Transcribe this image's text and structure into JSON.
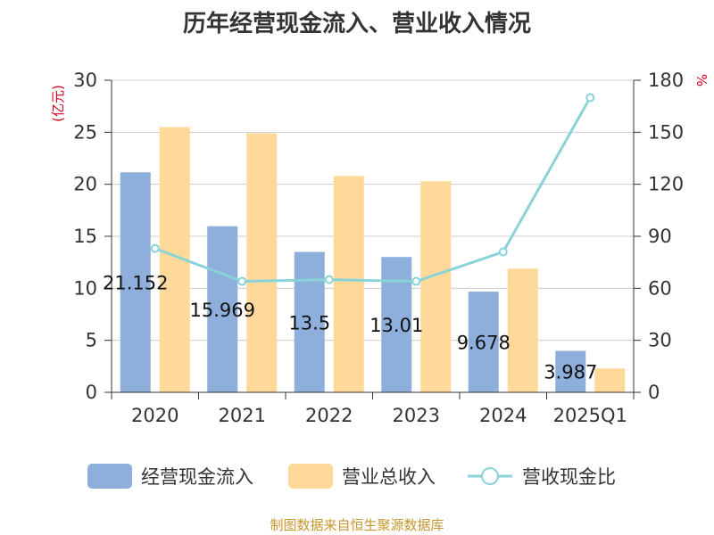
{
  "chart_data": {
    "type": "bar",
    "title": "历年经营现金流入、营业收入情况",
    "categories": [
      "2020",
      "2021",
      "2022",
      "2023",
      "2024",
      "2025Q1"
    ],
    "y_left": {
      "unit": "(亿元)",
      "ylim": [
        0,
        30
      ],
      "ticks": [
        "0",
        "5",
        "10",
        "15",
        "20",
        "25",
        "30"
      ]
    },
    "y_right": {
      "unit": "%",
      "ylim": [
        0,
        180
      ],
      "ticks": [
        "0",
        "30",
        "60",
        "90",
        "120",
        "150",
        "180"
      ]
    },
    "series": [
      {
        "name": "经营现金流入",
        "kind": "bar",
        "axis": "left",
        "color": "#8eaedb",
        "values": [
          21.15,
          15.97,
          13.5,
          13.01,
          9.678,
          3.987
        ],
        "labels": [
          "21.152",
          "15.969",
          "13.5",
          "13.01",
          "9.678",
          "3.987"
        ]
      },
      {
        "name": "营业总收入",
        "kind": "bar",
        "axis": "left",
        "color": "#ffd99a",
        "values": [
          25.5,
          24.9,
          20.8,
          20.3,
          11.9,
          2.3
        ]
      },
      {
        "name": "营收现金比",
        "kind": "line",
        "axis": "right",
        "color": "#88d3d8",
        "values": [
          83,
          64,
          65,
          64,
          81,
          170
        ]
      }
    ],
    "grid": true,
    "legend_position": "bottom"
  },
  "source": "制图数据来自恒生聚源数据库"
}
